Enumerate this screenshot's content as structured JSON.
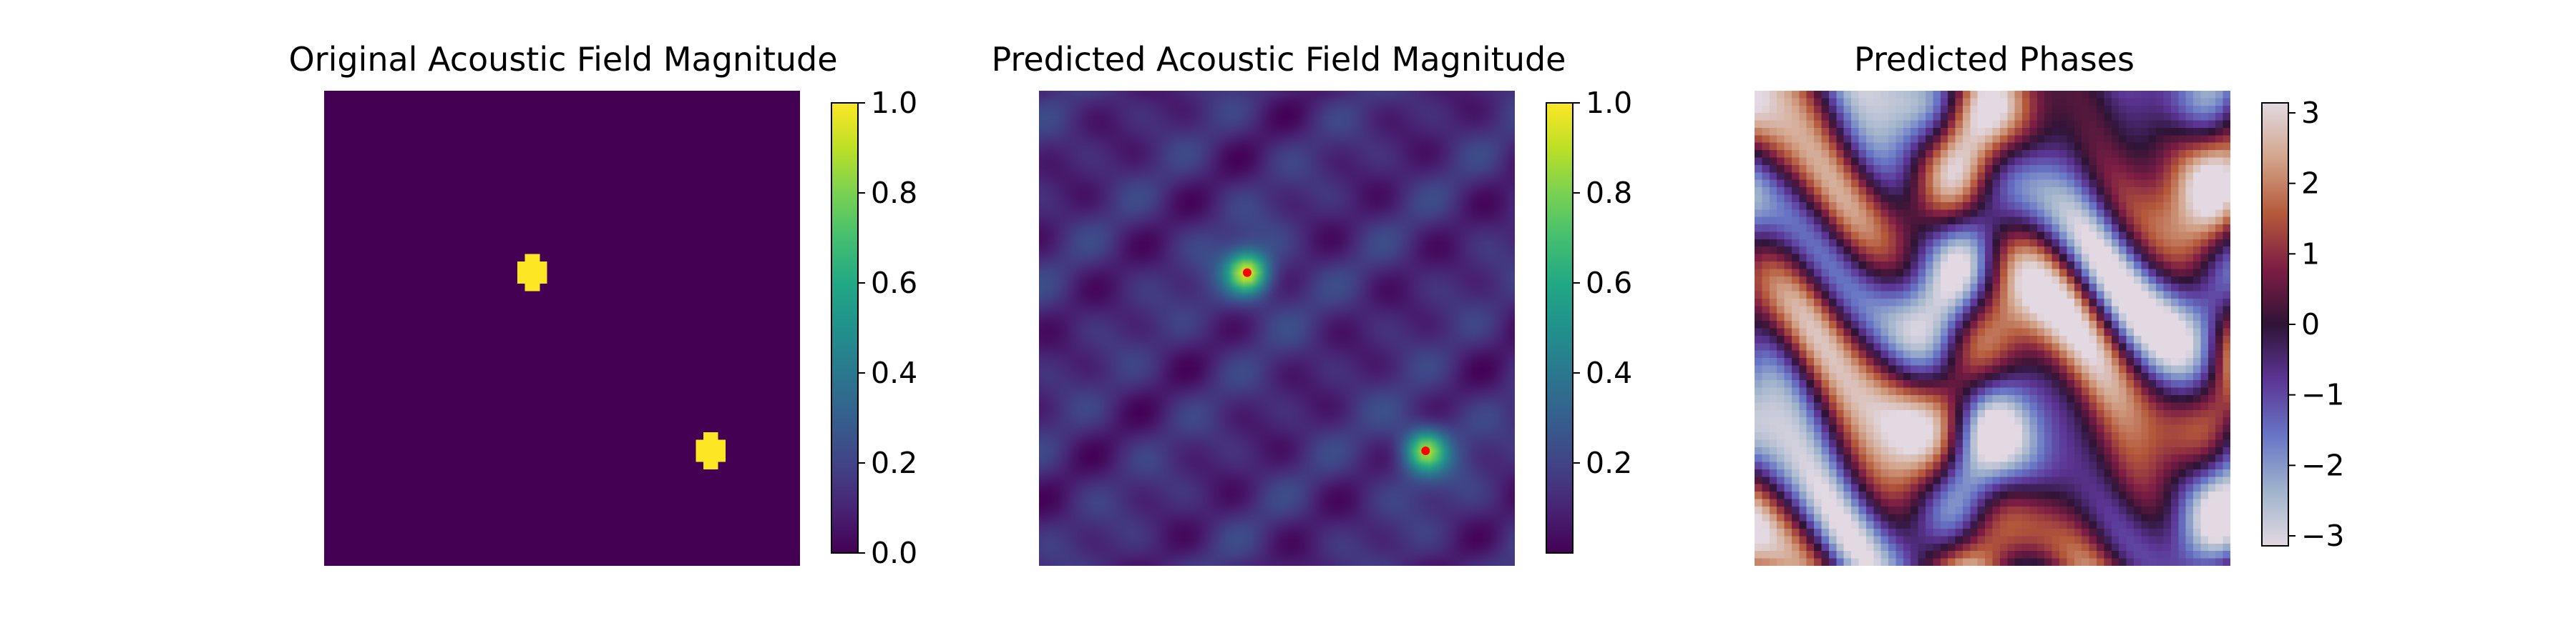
{
  "chart_data": [
    {
      "type": "heatmap",
      "title": "Original Acoustic Field Magnitude",
      "colormap": "viridis",
      "colorbar": {
        "ticks": [
          "0.0",
          "0.2",
          "0.4",
          "0.6",
          "0.8",
          "1.0"
        ],
        "range": [
          0.0,
          1.0
        ]
      },
      "axes_visible": false,
      "grid_size": [
        64,
        64
      ],
      "background_value": 0.0,
      "hotspots": [
        {
          "name": "source-1",
          "value": 1.0,
          "center": [
            24,
            27.5
          ]
        },
        {
          "name": "source-2",
          "value": 1.0,
          "center": [
            48,
            51.5
          ]
        }
      ]
    },
    {
      "type": "heatmap",
      "title": "Predicted Acoustic Field Magnitude",
      "colormap": "viridis",
      "colorbar": {
        "ticks": [
          "0.2",
          "0.4",
          "0.6",
          "0.8",
          "1.0"
        ],
        "range": [
          0.0,
          1.0
        ]
      },
      "axes_visible": false,
      "grid_size": [
        64,
        64
      ],
      "background_value": 0.12,
      "hotspots": [
        {
          "name": "focus-1",
          "value": 0.72,
          "center": [
            24,
            27.5
          ]
        },
        {
          "name": "focus-2",
          "value": 0.62,
          "center": [
            48,
            51.5
          ]
        }
      ],
      "markers": [
        {
          "name": "target-1",
          "center": [
            24,
            27.5
          ],
          "color": "#ff0000"
        },
        {
          "name": "target-2",
          "center": [
            48,
            51.5
          ],
          "color": "#ff0000"
        }
      ]
    },
    {
      "type": "heatmap",
      "title": "Predicted Phases",
      "colormap": "twilight",
      "colorbar": {
        "ticks": [
          "3",
          "2",
          "1",
          "0",
          "−1",
          "−2",
          "−3"
        ],
        "range": [
          -3.14159,
          3.14159
        ]
      },
      "axes_visible": false,
      "grid_size": [
        64,
        64
      ]
    }
  ],
  "colors": {
    "marker": "#ff0000",
    "background": "#ffffff"
  }
}
